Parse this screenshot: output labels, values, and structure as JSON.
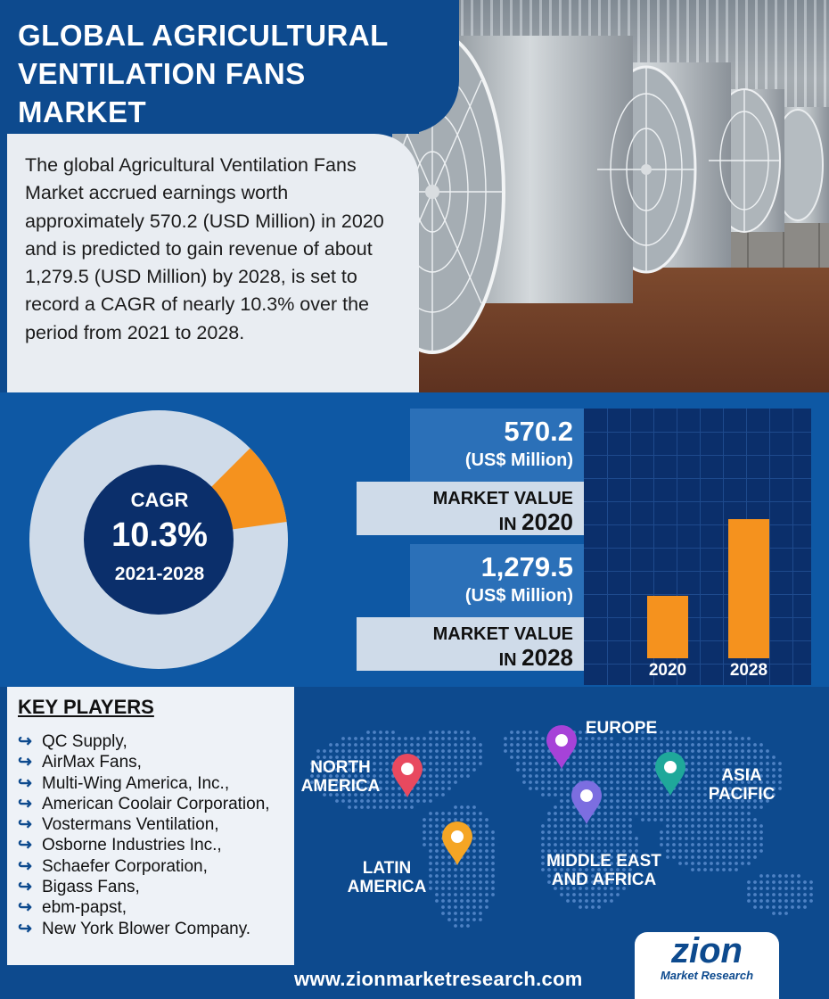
{
  "title": "GLOBAL AGRICULTURAL VENTILATION FANS MARKET",
  "description": "The global Agricultural Ventilation Fans Market accrued earnings worth approximately 570.2 (USD Million) in 2020 and is predicted to gain revenue of about 1,279.5 (USD Million) by 2028, is set to record a CAGR of nearly 10.3% over the period from 2021 to 2028.",
  "cagr": {
    "label": "CAGR",
    "value": "10.3%",
    "period": "2021-2028",
    "fraction": 0.103
  },
  "market_values": [
    {
      "value": "570.2",
      "unit": "(US$ Million)",
      "label_line1": "MARKET VALUE",
      "label_prefix": "IN",
      "year": "2020"
    },
    {
      "value": "1,279.5",
      "unit": "(US$ Million)",
      "label_line1": "MARKET VALUE",
      "label_prefix": "IN",
      "year": "2028"
    }
  ],
  "chart_data": {
    "type": "bar",
    "categories": [
      "2020",
      "2028"
    ],
    "values": [
      570.2,
      1279.5
    ],
    "title": "",
    "xlabel": "",
    "ylabel": "",
    "ylim": [
      0,
      1800
    ],
    "grid": true
  },
  "key_players": {
    "title": "KEY PLAYERS",
    "items": [
      "QC Supply,",
      "AirMax Fans,",
      "Multi-Wing America, Inc.,",
      "American Coolair Corporation,",
      "Vostermans Ventilation,",
      "Osborne Industries Inc.,",
      "Schaefer Corporation,",
      "Bigass Fans,",
      "ebm-papst,",
      "New York Blower Company."
    ]
  },
  "regions": {
    "north_america": "NORTH AMERICA",
    "europe": "EUROPE",
    "asia_pacific": "ASIA PACIFIC",
    "latin_america": "LATIN AMERICA",
    "mea": "MIDDLE EAST AND AFRICA"
  },
  "footer": {
    "url": "www.zionmarketresearch.com"
  },
  "logo": {
    "main": "zion",
    "sub": "Market Research"
  },
  "colors": {
    "navy": "#0d4a8e",
    "orange": "#f5921e",
    "donut_base": "#cfdbe9",
    "pin_na": "#e8495f",
    "pin_eu": "#a642d8",
    "pin_la": "#f5a524",
    "pin_mea": "#7c6ee0",
    "pin_ap": "#1fa89a"
  }
}
